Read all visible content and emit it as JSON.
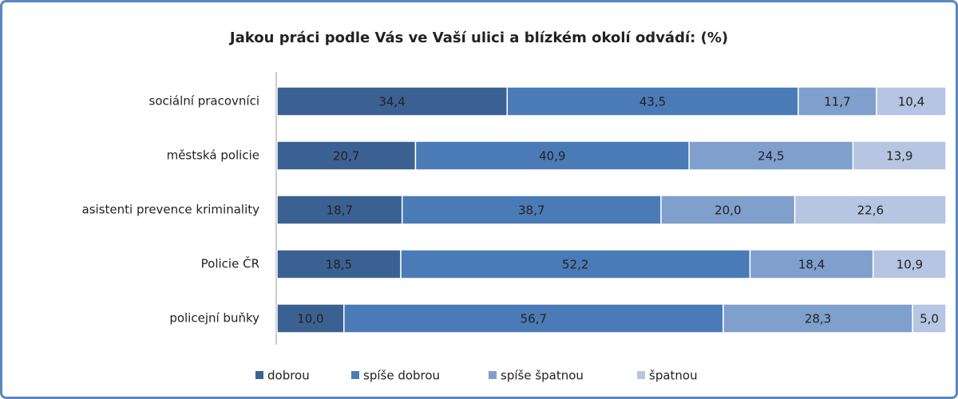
{
  "chart_data": {
    "type": "stacked-barh",
    "title": "Jakou práci podle Vás ve Vaší ulici a blízkém okolí odvádí: (%)",
    "categories": [
      "sociální pracovníci",
      "městská policie",
      "asistenti prevence kriminality",
      "Policie ČR",
      "policejní buňky"
    ],
    "xlim": [
      0,
      100
    ],
    "legend": "bottom",
    "series": [
      {
        "name": "dobrou",
        "color": "#3b6193",
        "values": [
          34.4,
          20.7,
          18.7,
          18.5,
          10.0
        ],
        "value_labels": [
          "34,4",
          "20,7",
          "18,7",
          "18,5",
          "10,0"
        ]
      },
      {
        "name": "spíše dobrou",
        "color": "#4a7bb7",
        "values": [
          43.5,
          40.9,
          38.7,
          52.2,
          56.7
        ],
        "value_labels": [
          "43,5",
          "40,9",
          "38,7",
          "52,2",
          "56,7"
        ]
      },
      {
        "name": "spíše špatnou",
        "color": "#7f9fcd",
        "values": [
          11.7,
          24.5,
          20.0,
          18.4,
          28.3
        ],
        "value_labels": [
          "11,7",
          "24,5",
          "20,0",
          "18,4",
          "28,3"
        ]
      },
      {
        "name": "špatnou",
        "color": "#b5c5e2",
        "values": [
          10.4,
          13.9,
          22.6,
          10.9,
          5.0
        ],
        "value_labels": [
          "10,4",
          "13,9",
          "22,6",
          "10,9",
          "5,0"
        ]
      }
    ]
  }
}
